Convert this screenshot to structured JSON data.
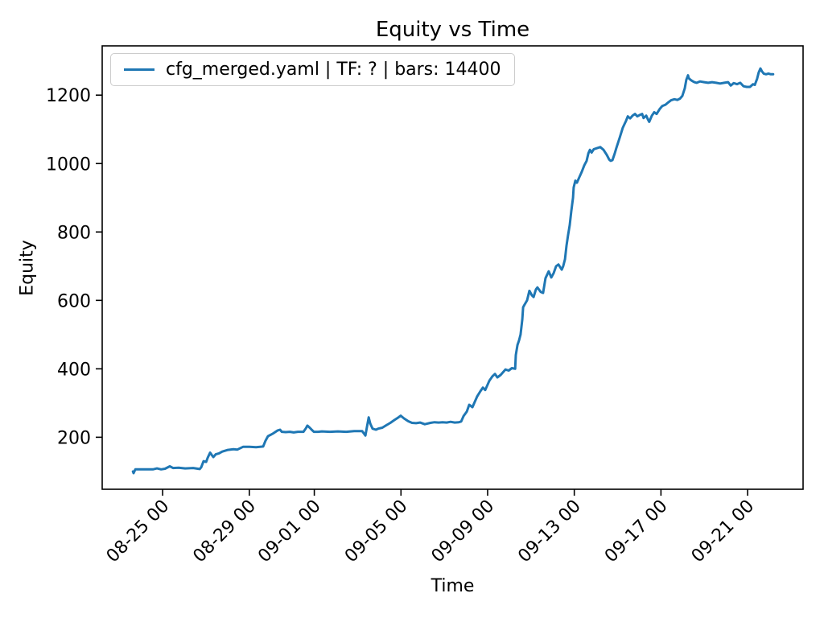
{
  "chart_data": {
    "type": "line",
    "title": "Equity vs Time",
    "xlabel": "Time",
    "ylabel": "Equity",
    "legend_position": "upper left",
    "grid": false,
    "line_color": "#1f77b4",
    "x_unit": "days relative to 08-25 00:00",
    "xlim": [
      -2.79,
      29.56
    ],
    "ylim": [
      48,
      1344
    ],
    "yticks": [
      200,
      400,
      600,
      800,
      1000,
      1200
    ],
    "xticks": [
      {
        "t": 0,
        "label": "08-25 00"
      },
      {
        "t": 4,
        "label": "08-29 00"
      },
      {
        "t": 7,
        "label": "09-01 00"
      },
      {
        "t": 11,
        "label": "09-05 00"
      },
      {
        "t": 15,
        "label": "09-09 00"
      },
      {
        "t": 19,
        "label": "09-13 00"
      },
      {
        "t": 23,
        "label": "09-17 00"
      },
      {
        "t": 27,
        "label": "09-21 00"
      }
    ],
    "series": [
      {
        "name": "cfg_merged.yaml | TF: ? | bars: 14400",
        "points": [
          [
            -1.37,
            100
          ],
          [
            -1.34,
            95
          ],
          [
            -1.26,
            106
          ],
          [
            -0.45,
            106
          ],
          [
            -0.26,
            109
          ],
          [
            -0.07,
            106
          ],
          [
            0.11,
            108
          ],
          [
            0.33,
            115
          ],
          [
            0.48,
            110
          ],
          [
            0.74,
            111
          ],
          [
            1.04,
            109
          ],
          [
            1.41,
            110
          ],
          [
            1.71,
            107
          ],
          [
            1.78,
            112
          ],
          [
            1.89,
            130
          ],
          [
            2.01,
            128
          ],
          [
            2.08,
            140
          ],
          [
            2.19,
            155
          ],
          [
            2.27,
            148
          ],
          [
            2.34,
            142
          ],
          [
            2.45,
            150
          ],
          [
            2.6,
            153
          ],
          [
            2.75,
            158
          ],
          [
            3.01,
            163
          ],
          [
            3.27,
            165
          ],
          [
            3.45,
            164
          ],
          [
            3.71,
            172
          ],
          [
            4.01,
            172
          ],
          [
            4.31,
            171
          ],
          [
            4.64,
            173
          ],
          [
            4.75,
            190
          ],
          [
            4.86,
            203
          ],
          [
            5.01,
            208
          ],
          [
            5.12,
            212
          ],
          [
            5.31,
            220
          ],
          [
            5.42,
            222
          ],
          [
            5.5,
            216
          ],
          [
            5.68,
            215
          ],
          [
            5.87,
            216
          ],
          [
            6.05,
            214
          ],
          [
            6.24,
            216
          ],
          [
            6.5,
            216
          ],
          [
            6.61,
            226
          ],
          [
            6.68,
            234
          ],
          [
            6.79,
            228
          ],
          [
            6.91,
            220
          ],
          [
            6.98,
            216
          ],
          [
            7.17,
            216
          ],
          [
            7.35,
            217
          ],
          [
            7.72,
            216
          ],
          [
            8.09,
            217
          ],
          [
            8.47,
            216
          ],
          [
            8.84,
            218
          ],
          [
            9.21,
            218
          ],
          [
            9.36,
            205
          ],
          [
            9.43,
            230
          ],
          [
            9.51,
            258
          ],
          [
            9.58,
            240
          ],
          [
            9.69,
            225
          ],
          [
            9.84,
            222
          ],
          [
            9.95,
            225
          ],
          [
            10.14,
            228
          ],
          [
            10.32,
            235
          ],
          [
            10.51,
            242
          ],
          [
            10.69,
            250
          ],
          [
            10.88,
            258
          ],
          [
            10.99,
            263
          ],
          [
            11.14,
            255
          ],
          [
            11.33,
            247
          ],
          [
            11.51,
            242
          ],
          [
            11.7,
            241
          ],
          [
            11.88,
            243
          ],
          [
            12.1,
            238
          ],
          [
            12.36,
            242
          ],
          [
            12.55,
            244
          ],
          [
            12.74,
            243
          ],
          [
            12.92,
            244
          ],
          [
            13.11,
            243
          ],
          [
            13.29,
            245
          ],
          [
            13.48,
            243
          ],
          [
            13.67,
            244
          ],
          [
            13.78,
            246
          ],
          [
            13.89,
            262
          ],
          [
            14.04,
            275
          ],
          [
            14.15,
            295
          ],
          [
            14.3,
            288
          ],
          [
            14.52,
            320
          ],
          [
            14.67,
            335
          ],
          [
            14.78,
            345
          ],
          [
            14.89,
            338
          ],
          [
            15.08,
            365
          ],
          [
            15.22,
            378
          ],
          [
            15.34,
            385
          ],
          [
            15.45,
            375
          ],
          [
            15.6,
            382
          ],
          [
            15.82,
            398
          ],
          [
            15.97,
            395
          ],
          [
            16.12,
            402
          ],
          [
            16.27,
            400
          ],
          [
            16.3,
            440
          ],
          [
            16.38,
            470
          ],
          [
            16.45,
            483
          ],
          [
            16.52,
            500
          ],
          [
            16.6,
            545
          ],
          [
            16.64,
            580
          ],
          [
            16.71,
            588
          ],
          [
            16.82,
            600
          ],
          [
            16.93,
            628
          ],
          [
            17.04,
            615
          ],
          [
            17.12,
            610
          ],
          [
            17.23,
            632
          ],
          [
            17.3,
            638
          ],
          [
            17.45,
            625
          ],
          [
            17.56,
            622
          ],
          [
            17.67,
            665
          ],
          [
            17.82,
            685
          ],
          [
            17.94,
            667
          ],
          [
            18.05,
            680
          ],
          [
            18.16,
            700
          ],
          [
            18.27,
            705
          ],
          [
            18.42,
            690
          ],
          [
            18.49,
            700
          ],
          [
            18.57,
            720
          ],
          [
            18.64,
            760
          ],
          [
            18.71,
            790
          ],
          [
            18.79,
            820
          ],
          [
            18.86,
            860
          ],
          [
            18.94,
            900
          ],
          [
            18.97,
            930
          ],
          [
            19.05,
            950
          ],
          [
            19.12,
            944
          ],
          [
            19.23,
            960
          ],
          [
            19.34,
            975
          ],
          [
            19.46,
            995
          ],
          [
            19.57,
            1008
          ],
          [
            19.65,
            1030
          ],
          [
            19.72,
            1040
          ],
          [
            19.8,
            1032
          ],
          [
            19.9,
            1042
          ],
          [
            20.05,
            1045
          ],
          [
            20.2,
            1048
          ],
          [
            20.35,
            1040
          ],
          [
            20.5,
            1025
          ],
          [
            20.61,
            1012
          ],
          [
            20.68,
            1008
          ],
          [
            20.76,
            1010
          ],
          [
            20.87,
            1030
          ],
          [
            20.94,
            1045
          ],
          [
            21.09,
            1075
          ],
          [
            21.24,
            1105
          ],
          [
            21.39,
            1125
          ],
          [
            21.47,
            1138
          ],
          [
            21.58,
            1132
          ],
          [
            21.69,
            1140
          ],
          [
            21.8,
            1145
          ],
          [
            21.91,
            1138
          ],
          [
            22.02,
            1142
          ],
          [
            22.13,
            1145
          ],
          [
            22.2,
            1133
          ],
          [
            22.32,
            1140
          ],
          [
            22.39,
            1130
          ],
          [
            22.46,
            1122
          ],
          [
            22.58,
            1140
          ],
          [
            22.69,
            1150
          ],
          [
            22.8,
            1145
          ],
          [
            22.95,
            1160
          ],
          [
            23.06,
            1168
          ],
          [
            23.21,
            1172
          ],
          [
            23.32,
            1178
          ],
          [
            23.47,
            1185
          ],
          [
            23.62,
            1188
          ],
          [
            23.76,
            1186
          ],
          [
            23.88,
            1190
          ],
          [
            23.99,
            1198
          ],
          [
            24.1,
            1220
          ],
          [
            24.17,
            1245
          ],
          [
            24.25,
            1258
          ],
          [
            24.28,
            1250
          ],
          [
            24.36,
            1245
          ],
          [
            24.43,
            1242
          ],
          [
            24.54,
            1238
          ],
          [
            24.65,
            1236
          ],
          [
            24.8,
            1240
          ],
          [
            24.99,
            1238
          ],
          [
            25.18,
            1236
          ],
          [
            25.36,
            1238
          ],
          [
            25.55,
            1236
          ],
          [
            25.73,
            1234
          ],
          [
            25.92,
            1236
          ],
          [
            26.1,
            1238
          ],
          [
            26.22,
            1228
          ],
          [
            26.36,
            1235
          ],
          [
            26.51,
            1232
          ],
          [
            26.66,
            1236
          ],
          [
            26.81,
            1226
          ],
          [
            26.96,
            1224
          ],
          [
            27.11,
            1224
          ],
          [
            27.25,
            1232
          ],
          [
            27.33,
            1230
          ],
          [
            27.44,
            1248
          ],
          [
            27.51,
            1266
          ],
          [
            27.59,
            1278
          ],
          [
            27.66,
            1270
          ],
          [
            27.74,
            1263
          ],
          [
            27.85,
            1261
          ],
          [
            27.96,
            1263
          ],
          [
            28.07,
            1261
          ],
          [
            28.18,
            1261
          ]
        ]
      }
    ]
  }
}
